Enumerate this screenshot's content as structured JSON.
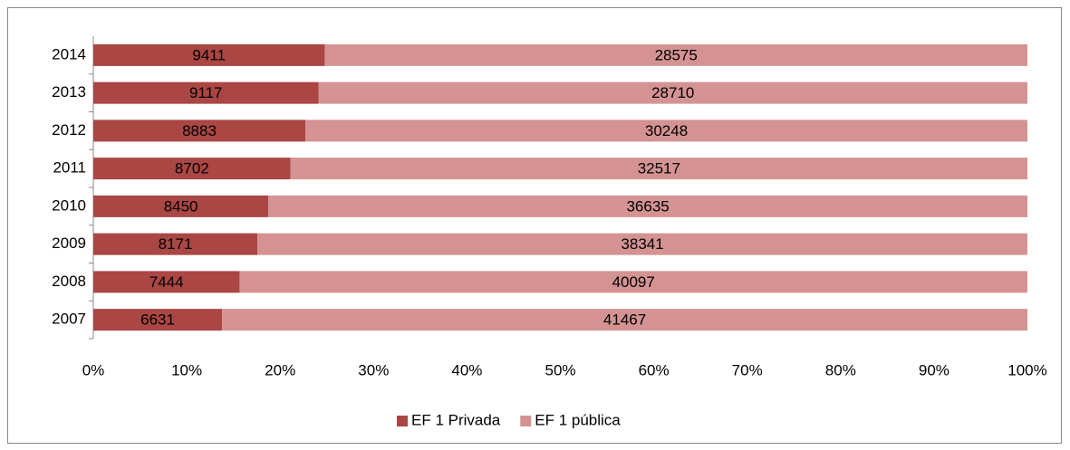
{
  "chart_data": {
    "type": "bar",
    "orientation": "horizontal",
    "stacking": "percent",
    "categories": [
      "2007",
      "2008",
      "2009",
      "2010",
      "2011",
      "2012",
      "2013",
      "2014"
    ],
    "series": [
      {
        "name": "EF 1 Privada",
        "color": "#aa4643",
        "values": [
          6631,
          7444,
          8171,
          8450,
          8702,
          8883,
          9117,
          9411
        ]
      },
      {
        "name": "EF 1 pública",
        "color": "#d49392",
        "values": [
          41467,
          40097,
          38341,
          36635,
          32517,
          30248,
          28710,
          28575
        ]
      }
    ],
    "xlim": [
      0,
      100
    ],
    "xticks": [
      {
        "value": 0,
        "label": "0%"
      },
      {
        "value": 10,
        "label": "10%"
      },
      {
        "value": 20,
        "label": "20%"
      },
      {
        "value": 30,
        "label": "30%"
      },
      {
        "value": 40,
        "label": "40%"
      },
      {
        "value": 50,
        "label": "50%"
      },
      {
        "value": 60,
        "label": "60%"
      },
      {
        "value": 70,
        "label": "70%"
      },
      {
        "value": 80,
        "label": "80%"
      },
      {
        "value": 90,
        "label": "90%"
      },
      {
        "value": 100,
        "label": "100%"
      }
    ],
    "legend": "bottom"
  }
}
